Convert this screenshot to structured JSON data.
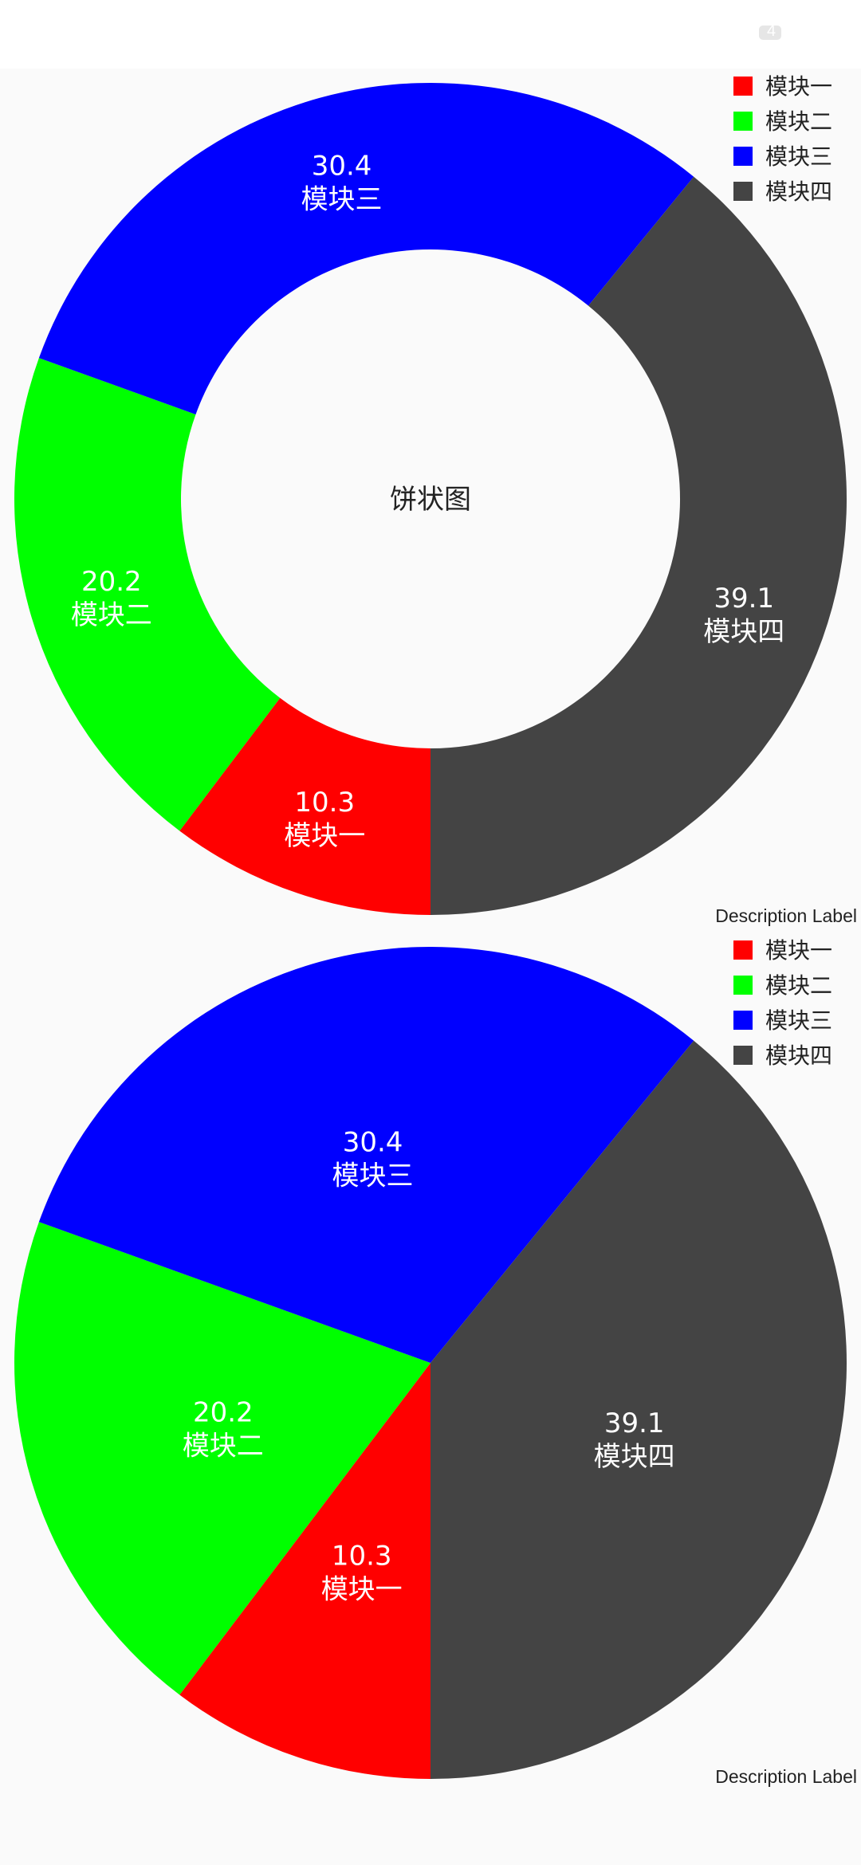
{
  "status_bar": {
    "battery_text": "4"
  },
  "chart_data": [
    {
      "type": "pie",
      "donut": true,
      "center_text": "饼状图",
      "description": "Description Label",
      "legend": {
        "placement": "top-right"
      },
      "slices": [
        {
          "label": "模块一",
          "value": 10.3,
          "value_text": "10.3",
          "color": "#ff0000"
        },
        {
          "label": "模块二",
          "value": 20.2,
          "value_text": "20.2",
          "color": "#00ff00"
        },
        {
          "label": "模块三",
          "value": 30.4,
          "value_text": "30.4",
          "color": "#0000ff"
        },
        {
          "label": "模块四",
          "value": 39.1,
          "value_text": "39.1",
          "color": "#444444"
        }
      ]
    },
    {
      "type": "pie",
      "donut": false,
      "center_text": "",
      "description": "Description Label",
      "legend": {
        "placement": "top-right"
      },
      "slices": [
        {
          "label": "模块一",
          "value": 10.3,
          "value_text": "10.3",
          "color": "#ff0000"
        },
        {
          "label": "模块二",
          "value": 20.2,
          "value_text": "20.2",
          "color": "#00ff00"
        },
        {
          "label": "模块三",
          "value": 30.4,
          "value_text": "30.4",
          "color": "#0000ff"
        },
        {
          "label": "模块四",
          "value": 39.1,
          "value_text": "39.1",
          "color": "#444444"
        }
      ]
    }
  ]
}
